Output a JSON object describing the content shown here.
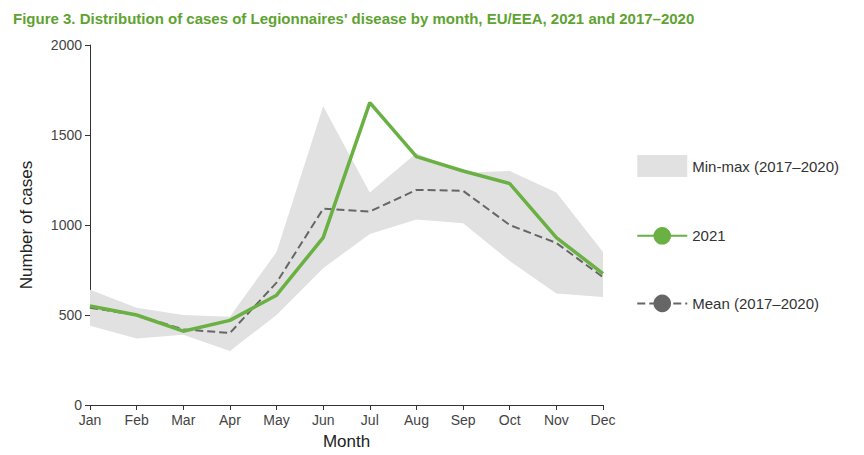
{
  "chart_data": {
    "type": "line",
    "title": "Figure 3. Distribution of cases of Legionnaires' disease by month, EU/EEA, 2021 and 2017–2020",
    "x_label": "Month",
    "y_label": "Number of cases",
    "categories": [
      "Jan",
      "Feb",
      "Mar",
      "Apr",
      "May",
      "Jun",
      "Jul",
      "Aug",
      "Sep",
      "Oct",
      "Nov",
      "Dec"
    ],
    "series": [
      {
        "name": "Min-max (2017–2020)",
        "type": "band",
        "color": "#e1e1e1",
        "min": [
          440,
          370,
          390,
          300,
          500,
          760,
          950,
          1030,
          1010,
          800,
          620,
          600
        ],
        "max": [
          640,
          540,
          500,
          490,
          850,
          1660,
          1180,
          1400,
          1290,
          1300,
          1180,
          850
        ]
      },
      {
        "name": "2021",
        "type": "line",
        "color": "#6ab043",
        "line_style": "solid",
        "values": [
          550,
          500,
          410,
          470,
          610,
          930,
          1680,
          1380,
          1300,
          1230,
          930,
          730
        ]
      },
      {
        "name": "Mean (2017–2020)",
        "type": "line",
        "color": "#666666",
        "line_style": "dashed",
        "values": [
          540,
          500,
          420,
          400,
          680,
          1090,
          1075,
          1195,
          1190,
          1000,
          900,
          710
        ]
      }
    ],
    "ylim": [
      0,
      2000
    ],
    "yticks": [
      0,
      500,
      1000,
      1500,
      2000
    ],
    "grid": false,
    "legend": "right"
  }
}
